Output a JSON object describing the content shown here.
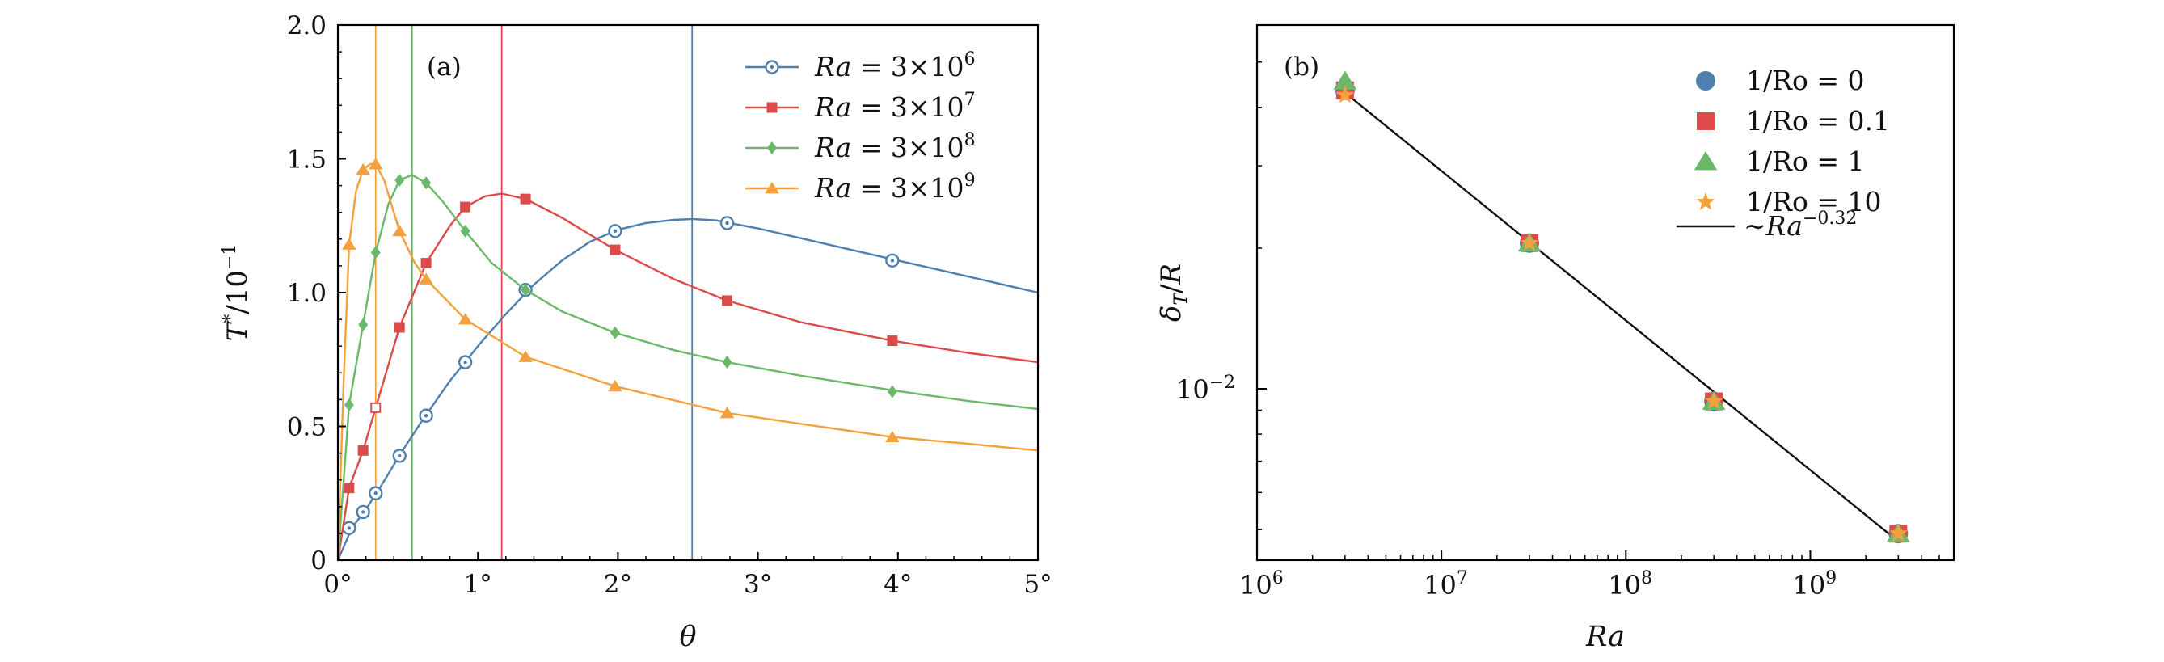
{
  "chart_data": [
    {
      "panel": "(a)",
      "type": "line",
      "xlabel": "θ",
      "ylabel": "T*/10⁻¹",
      "xlim": [
        0,
        5
      ],
      "ylim": [
        0,
        2
      ],
      "xticks": [
        0,
        1,
        2,
        3,
        4,
        5
      ],
      "xtick_labels": [
        "0°",
        "1°",
        "2°",
        "3°",
        "4°",
        "5°"
      ],
      "yticks": [
        0,
        0.5,
        1.0,
        1.5,
        2.0
      ],
      "ytick_labels": [
        "0",
        "0.5",
        "1.0",
        "1.5",
        "2.0"
      ],
      "legend_position": "top-right",
      "series": [
        {
          "name": "Ra = 3×10⁶",
          "legend_parts": [
            "Ra",
            " = 3×10",
            "6"
          ],
          "color": "#4e7fae",
          "marker": "open-circle",
          "peak_theta": 2.53,
          "curve": [
            [
              0,
              0
            ],
            [
              0.1,
              0.12
            ],
            [
              0.2,
              0.19
            ],
            [
              0.3,
              0.27
            ],
            [
              0.45,
              0.4
            ],
            [
              0.6,
              0.52
            ],
            [
              0.8,
              0.67
            ],
            [
              1.0,
              0.8
            ],
            [
              1.2,
              0.92
            ],
            [
              1.4,
              1.03
            ],
            [
              1.6,
              1.12
            ],
            [
              1.8,
              1.19
            ],
            [
              2.0,
              1.235
            ],
            [
              2.2,
              1.26
            ],
            [
              2.4,
              1.272
            ],
            [
              2.53,
              1.275
            ],
            [
              2.7,
              1.27
            ],
            [
              3.0,
              1.24
            ],
            [
              3.5,
              1.18
            ],
            [
              4.0,
              1.12
            ],
            [
              4.5,
              1.06
            ],
            [
              5.0,
              1.0
            ]
          ],
          "markers": [
            [
              0.08,
              0.12
            ],
            [
              0.18,
              0.18
            ],
            [
              0.27,
              0.25
            ],
            [
              0.44,
              0.39
            ],
            [
              0.63,
              0.54
            ],
            [
              0.91,
              0.74
            ],
            [
              1.34,
              1.01
            ],
            [
              1.98,
              1.23
            ],
            [
              2.78,
              1.26
            ],
            [
              3.96,
              1.12
            ]
          ]
        },
        {
          "name": "Ra = 3×10⁷",
          "legend_parts": [
            "Ra",
            " = 3×10",
            "7"
          ],
          "color": "#dc4a4a",
          "marker": "filled-square",
          "peak_theta": 1.17,
          "curve": [
            [
              0,
              0
            ],
            [
              0.08,
              0.27
            ],
            [
              0.18,
              0.41
            ],
            [
              0.27,
              0.57
            ],
            [
              0.44,
              0.87
            ],
            [
              0.63,
              1.11
            ],
            [
              0.8,
              1.25
            ],
            [
              0.91,
              1.32
            ],
            [
              1.05,
              1.36
            ],
            [
              1.17,
              1.37
            ],
            [
              1.34,
              1.35
            ],
            [
              1.6,
              1.28
            ],
            [
              1.98,
              1.16
            ],
            [
              2.4,
              1.05
            ],
            [
              2.78,
              0.97
            ],
            [
              3.3,
              0.89
            ],
            [
              3.96,
              0.82
            ],
            [
              4.5,
              0.775
            ],
            [
              5.0,
              0.74
            ]
          ],
          "markers": [
            [
              0.08,
              0.27
            ],
            [
              0.18,
              0.41
            ],
            [
              0.44,
              0.87
            ],
            [
              0.63,
              1.11
            ],
            [
              0.91,
              1.32
            ],
            [
              1.34,
              1.35
            ],
            [
              1.98,
              1.16
            ],
            [
              2.78,
              0.97
            ],
            [
              3.96,
              0.82
            ]
          ],
          "open_markers": [
            [
              0.27,
              0.57
            ]
          ]
        },
        {
          "name": "Ra = 3×10⁸",
          "legend_parts": [
            "Ra",
            " = 3×10",
            "8"
          ],
          "color": "#6bb86b",
          "marker": "filled-diamond",
          "peak_theta": 0.53,
          "curve": [
            [
              0,
              0
            ],
            [
              0.08,
              0.58
            ],
            [
              0.18,
              0.88
            ],
            [
              0.27,
              1.15
            ],
            [
              0.36,
              1.33
            ],
            [
              0.44,
              1.42
            ],
            [
              0.53,
              1.44
            ],
            [
              0.63,
              1.41
            ],
            [
              0.75,
              1.34
            ],
            [
              0.91,
              1.23
            ],
            [
              1.1,
              1.11
            ],
            [
              1.34,
              1.01
            ],
            [
              1.6,
              0.93
            ],
            [
              1.98,
              0.85
            ],
            [
              2.4,
              0.785
            ],
            [
              2.78,
              0.74
            ],
            [
              3.3,
              0.69
            ],
            [
              3.96,
              0.635
            ],
            [
              4.5,
              0.595
            ],
            [
              5.0,
              0.565
            ]
          ],
          "markers": [
            [
              0.08,
              0.58
            ],
            [
              0.18,
              0.88
            ],
            [
              0.27,
              1.15
            ],
            [
              0.44,
              1.42
            ],
            [
              0.63,
              1.41
            ],
            [
              0.91,
              1.23
            ],
            [
              1.34,
              1.01
            ],
            [
              1.98,
              0.85
            ],
            [
              2.78,
              0.74
            ],
            [
              3.96,
              0.63
            ]
          ]
        },
        {
          "name": "Ra = 3×10⁹",
          "legend_parts": [
            "Ra",
            " = 3×10",
            "9"
          ],
          "color": "#f4a03c",
          "marker": "filled-triangle",
          "peak_theta": 0.27,
          "curve": [
            [
              0,
              0
            ],
            [
              0.04,
              0.65
            ],
            [
              0.08,
              1.18
            ],
            [
              0.13,
              1.38
            ],
            [
              0.18,
              1.46
            ],
            [
              0.23,
              1.48
            ],
            [
              0.27,
              1.48
            ],
            [
              0.33,
              1.42
            ],
            [
              0.44,
              1.23
            ],
            [
              0.55,
              1.11
            ],
            [
              0.63,
              1.05
            ],
            [
              0.91,
              0.9
            ],
            [
              1.34,
              0.76
            ],
            [
              1.98,
              0.65
            ],
            [
              2.78,
              0.55
            ],
            [
              3.3,
              0.51
            ],
            [
              3.96,
              0.46
            ],
            [
              4.5,
              0.435
            ],
            [
              5.0,
              0.41
            ]
          ],
          "markers": [
            [
              0.08,
              1.18
            ],
            [
              0.18,
              1.46
            ],
            [
              0.27,
              1.48
            ],
            [
              0.44,
              1.23
            ],
            [
              0.63,
              1.05
            ],
            [
              0.91,
              0.9
            ],
            [
              1.34,
              0.76
            ],
            [
              1.98,
              0.65
            ],
            [
              2.78,
              0.55
            ],
            [
              3.96,
              0.46
            ]
          ]
        }
      ]
    },
    {
      "panel": "(b)",
      "type": "scatter",
      "xscale": "log",
      "yscale": "log",
      "xlabel": "Ra",
      "ylabel": "δT/R",
      "xlim": [
        1000000,
        6000000000
      ],
      "ylim": [
        0.0043,
        0.06
      ],
      "xticks": [
        1000000,
        10000000,
        100000000,
        1000000000
      ],
      "xtick_labels": [
        [
          "10",
          "6"
        ],
        [
          "10",
          "7"
        ],
        [
          "10",
          "8"
        ],
        [
          "10",
          "9"
        ]
      ],
      "yticks": [
        0.01
      ],
      "ytick_labels": [
        [
          "10",
          "−2"
        ]
      ],
      "legend_position": "top-right",
      "series": [
        {
          "name": "1/Ro = 0",
          "color": "#4e7fae",
          "marker": "circle",
          "points": [
            [
              3000000,
              0.0435
            ],
            [
              30000000,
              0.0205
            ],
            [
              300000000,
              0.0094
            ],
            [
              3000000000,
              0.0049
            ]
          ]
        },
        {
          "name": "1/Ro = 0.1",
          "color": "#dc4a4a",
          "marker": "square",
          "points": [
            [
              3000000,
              0.0435
            ],
            [
              30000000,
              0.0205
            ],
            [
              300000000,
              0.0094
            ],
            [
              3000000000,
              0.0049
            ]
          ]
        },
        {
          "name": "1/Ro = 1",
          "color": "#6bb86b",
          "marker": "triangle",
          "points": [
            [
              3000000,
              0.0455
            ],
            [
              30000000,
              0.0205
            ],
            [
              300000000,
              0.0094
            ],
            [
              3000000000,
              0.0049
            ]
          ]
        },
        {
          "name": "1/Ro = 10",
          "color": "#f4a03c",
          "marker": "star",
          "points": [
            [
              3000000,
              0.0425
            ],
            [
              30000000,
              0.0205
            ],
            [
              300000000,
              0.0094
            ],
            [
              3000000000,
              0.0049
            ]
          ]
        }
      ],
      "fit": {
        "legend_prefix": "∼Ra",
        "legend_exponent": "−0.32",
        "exponent": -0.32,
        "color": "#111111",
        "range": [
          3000000,
          3000000000
        ],
        "y_at_start": 0.043
      }
    }
  ]
}
